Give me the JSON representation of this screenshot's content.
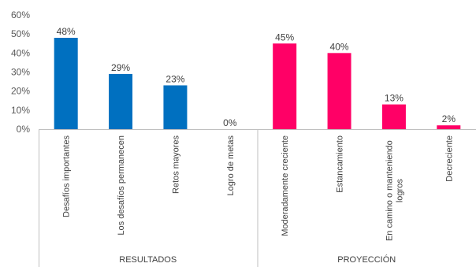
{
  "chart_data": {
    "type": "bar",
    "categories": [
      "Desafíos importantes",
      "Los desafíos permanecen",
      "Retos mayores",
      "Logro de metas",
      "Moderadamente creciente",
      "Estancamiento",
      "En camino o manteniendo logros",
      "Decreciente"
    ],
    "values": [
      48,
      29,
      23,
      0,
      45,
      40,
      13,
      2
    ],
    "data_labels": [
      "48%",
      "29%",
      "23%",
      "0%",
      "45%",
      "40%",
      "13%",
      "2%"
    ],
    "groups": [
      {
        "label": "RESULTADOS",
        "start": 0,
        "end": 3,
        "color": "#0070C0"
      },
      {
        "label": "PROYECCIÓN",
        "start": 4,
        "end": 7,
        "color": "#FF0066"
      }
    ],
    "y_ticks": [
      "0%",
      "10%",
      "20%",
      "30%",
      "40%",
      "50%",
      "60%"
    ],
    "ylim": [
      0,
      60
    ],
    "grid": false,
    "legend": "none"
  }
}
